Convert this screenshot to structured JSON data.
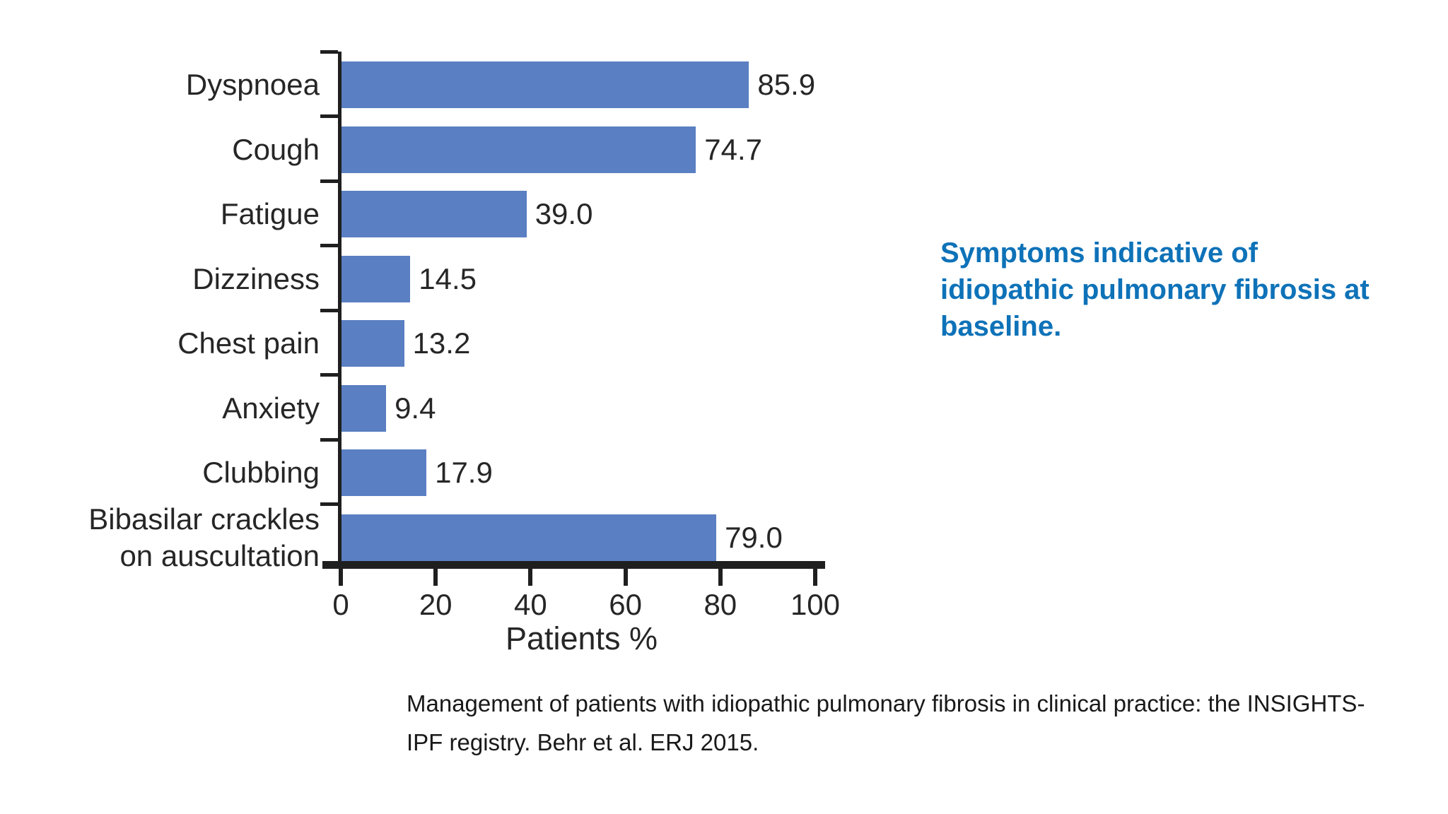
{
  "chart_data": {
    "type": "bar",
    "orientation": "horizontal",
    "categories": [
      "Dyspnoea",
      "Cough",
      "Fatigue",
      "Dizziness",
      "Chest pain",
      "Anxiety",
      "Clubbing",
      "Bibasilar crackles\non auscultation"
    ],
    "values": [
      85.9,
      74.7,
      39.0,
      14.5,
      13.2,
      9.4,
      17.9,
      79.0
    ],
    "value_labels": [
      "85.9",
      "74.7",
      "39.0",
      "14.5",
      "13.2",
      "9.4",
      "17.9",
      "79.0"
    ],
    "title": "",
    "xlabel": "Patients %",
    "ylabel": "",
    "xlim": [
      0,
      100
    ],
    "x_ticks": [
      "0",
      "20",
      "40",
      "60",
      "80",
      "100"
    ],
    "grid": "off",
    "legend": "none",
    "bar_color": "#5a7fc2",
    "axis_color": "#1f1f1f"
  },
  "heading": {
    "text": "Symptoms indicative of idiopathic pulmonary fibrosis at baseline.",
    "color": "#0e72b8"
  },
  "caption": {
    "text": "Management of patients with idiopathic pulmonary fibrosis in clinical practice: the INSIGHTS-IPF registry. Behr et al. ERJ 2015."
  }
}
